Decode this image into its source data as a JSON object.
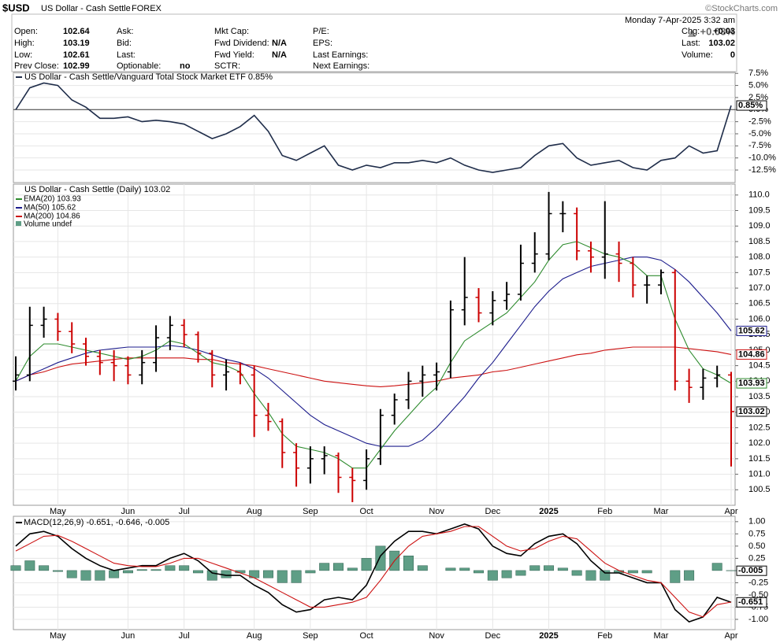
{
  "header": {
    "symbol": "$USD",
    "name": "US Dollar - Cash Settle",
    "exchange": "FOREX",
    "copyright": "©StockCharts.com",
    "date": "Monday  7-Apr-2025  3:32 am",
    "change_pct": "+0.03%",
    "fields": [
      [
        [
          "Open:",
          "102.64"
        ],
        [
          "Ask:",
          ""
        ],
        [
          "Mkt Cap:",
          ""
        ],
        [
          "P/E:",
          ""
        ],
        [
          "Chg:",
          "+0.03"
        ]
      ],
      [
        [
          "High:",
          "103.19"
        ],
        [
          "Bid:",
          ""
        ],
        [
          "Fwd Dividend:",
          "N/A"
        ],
        [
          "EPS:",
          ""
        ],
        [
          "Last:",
          "103.02"
        ]
      ],
      [
        [
          "Low:",
          "102.61"
        ],
        [
          "Last:",
          ""
        ],
        [
          "Fwd Yield:",
          "N/A"
        ],
        [
          "Last Earnings:",
          ""
        ],
        [
          "Volume:",
          "0"
        ]
      ],
      [
        [
          "Prev Close:",
          "102.99"
        ],
        [
          "Optionable:",
          "no"
        ],
        [
          "SCTR:",
          ""
        ],
        [
          "Next Earnings:",
          ""
        ],
        null
      ]
    ]
  },
  "chart_data": [
    {
      "type": "line",
      "title": "US Dollar - Cash Settle/Vanguard Total Stock Market ETF 0.85%",
      "color": "#1f2d4a",
      "values": [
        0.0,
        4.5,
        5.5,
        5.0,
        2.0,
        0.5,
        -1.8,
        -1.8,
        -1.5,
        -2.5,
        -2.2,
        -2.5,
        -3.0,
        -4.5,
        -6.0,
        -5.0,
        -3.5,
        -1.2,
        -4.5,
        -9.5,
        -10.5,
        -9.0,
        -7.5,
        -11.5,
        -12.5,
        -11.5,
        -12.0,
        -11.0,
        -11.0,
        -10.5,
        -11.0,
        -10.0,
        -11.5,
        -12.5,
        -13.0,
        -12.5,
        -12.0,
        -9.5,
        -7.5,
        -7.0,
        -10.0,
        -11.5,
        -11.0,
        -10.5,
        -12.0,
        -12.5,
        -10.5,
        -10.0,
        -7.5,
        -9.0,
        -8.5,
        0.85
      ],
      "value_labels": [
        null,
        null,
        null,
        null,
        null,
        null,
        null,
        null,
        null,
        null,
        null,
        null,
        null,
        null,
        null,
        null,
        null,
        null,
        null,
        null,
        null,
        null,
        null,
        null,
        null,
        null,
        null,
        null,
        null,
        null,
        null,
        null,
        null,
        null,
        null,
        null,
        null,
        null,
        null,
        null,
        null,
        null,
        null,
        null,
        null,
        null,
        null,
        null,
        null,
        null,
        null,
        "0.85%"
      ],
      "ylim": [
        -15.1,
        7.7
      ],
      "yticks": [
        {
          "value": 7.5,
          "label": "7.5%"
        },
        {
          "value": 5,
          "label": "5.0%"
        },
        {
          "value": 2.5,
          "label": "2.5%"
        },
        {
          "value": 0,
          "label": "0.0%"
        },
        {
          "value": -2.5,
          "label": "-2.5%"
        },
        {
          "value": -5,
          "label": "-5.0%"
        },
        {
          "value": -7.5,
          "label": "-7.5%"
        },
        {
          "value": -10,
          "label": "-10.0%"
        },
        {
          "value": -12.5,
          "label": "-12.5%"
        }
      ],
      "grid": true
    },
    {
      "type": "ohlc",
      "title": "US Dollar - Cash Settle (Daily) 103.02",
      "up_color": "#000000",
      "down_color": "#cc0000",
      "volume_label": "Volume undef",
      "categories": [
        null,
        null,
        null,
        "May",
        null,
        null,
        null,
        null,
        "Jun",
        null,
        null,
        null,
        "Jul",
        null,
        null,
        null,
        null,
        "Aug",
        null,
        null,
        null,
        "Sep",
        null,
        null,
        null,
        "Oct",
        null,
        null,
        null,
        null,
        "Nov",
        null,
        null,
        null,
        "Dec",
        null,
        null,
        null,
        "2025",
        null,
        null,
        null,
        "Feb",
        null,
        null,
        null,
        "Mar",
        null,
        null,
        null,
        null,
        "Apr"
      ],
      "open": [
        104.0,
        104.2,
        105.8,
        106.0,
        105.6,
        105.2,
        104.8,
        104.6,
        104.5,
        104.2,
        104.6,
        105.4,
        105.8,
        105.5,
        104.9,
        104.2,
        104.3,
        104.2,
        102.9,
        102.7,
        101.7,
        101.2,
        101.5,
        101.6,
        100.9,
        100.8,
        101.5,
        102.9,
        103.4,
        104.0,
        104.2,
        104.3,
        106.3,
        106.7,
        106.2,
        106.6,
        106.8,
        107.8,
        108.1,
        109.4,
        109.4,
        108.2,
        108.0,
        108.1,
        107.8,
        107.1,
        107.1,
        107.5,
        104.0,
        103.8,
        104.1,
        104.2
      ],
      "high": [
        104.8,
        106.4,
        106.4,
        106.2,
        105.9,
        105.4,
        105.0,
        105.0,
        104.8,
        105.0,
        105.8,
        106.1,
        106.0,
        105.6,
        105.0,
        104.7,
        104.6,
        104.5,
        103.3,
        102.8,
        102.0,
        101.9,
        101.9,
        101.7,
        101.2,
        101.8,
        103.1,
        103.6,
        104.3,
        104.5,
        104.6,
        106.6,
        108.0,
        107.0,
        106.9,
        107.2,
        108.4,
        108.8,
        110.1,
        109.8,
        109.6,
        108.5,
        109.8,
        108.5,
        108.0,
        107.4,
        107.6,
        107.6,
        104.4,
        104.4,
        104.5,
        104.3
      ],
      "low": [
        103.7,
        104.0,
        105.4,
        105.3,
        104.9,
        104.5,
        104.2,
        104.0,
        103.9,
        103.9,
        104.3,
        105.0,
        105.1,
        104.6,
        103.8,
        103.7,
        103.9,
        102.2,
        102.4,
        101.2,
        100.6,
        100.7,
        101.0,
        100.4,
        100.1,
        100.5,
        101.3,
        102.6,
        103.1,
        103.5,
        103.7,
        104.1,
        105.8,
        105.9,
        105.8,
        106.3,
        106.6,
        107.5,
        107.9,
        108.8,
        107.9,
        107.5,
        107.3,
        107.2,
        106.7,
        106.5,
        106.8,
        103.7,
        103.3,
        103.4,
        103.8,
        101.25
      ],
      "close": [
        104.2,
        105.8,
        106.0,
        105.6,
        105.2,
        104.8,
        104.6,
        104.5,
        104.2,
        104.6,
        105.4,
        105.8,
        105.5,
        104.9,
        104.2,
        104.3,
        104.2,
        102.9,
        102.7,
        101.7,
        101.2,
        101.5,
        101.6,
        100.9,
        100.8,
        101.5,
        102.9,
        103.4,
        104.0,
        104.2,
        104.3,
        106.3,
        106.7,
        106.2,
        106.6,
        106.8,
        107.8,
        108.1,
        109.4,
        109.4,
        108.2,
        108.0,
        108.1,
        107.8,
        107.1,
        107.1,
        107.5,
        104.0,
        103.8,
        104.1,
        104.2,
        103.02
      ],
      "series": [
        {
          "name": "EMA(20) 103.93",
          "color": "#2e8b2e",
          "values": [
            104.0,
            104.8,
            105.2,
            105.2,
            105.1,
            105.0,
            104.9,
            104.8,
            104.7,
            104.8,
            105.0,
            105.3,
            105.2,
            104.9,
            104.6,
            104.5,
            104.3,
            103.6,
            103.0,
            102.3,
            101.9,
            101.8,
            101.7,
            101.5,
            101.2,
            101.2,
            101.8,
            102.4,
            102.9,
            103.4,
            103.8,
            104.6,
            105.3,
            105.6,
            105.9,
            106.2,
            106.7,
            107.2,
            107.9,
            108.4,
            108.5,
            108.3,
            108.1,
            108.0,
            107.8,
            107.4,
            107.4,
            106.0,
            105.0,
            104.4,
            104.2,
            103.93
          ]
        },
        {
          "name": "MA(50) 105.62",
          "color": "#1c1c8c",
          "values": [
            104.0,
            104.2,
            104.4,
            104.6,
            104.75,
            104.9,
            105.0,
            105.05,
            105.1,
            105.1,
            105.1,
            105.15,
            105.1,
            105.0,
            104.85,
            104.7,
            104.6,
            104.4,
            104.1,
            103.7,
            103.3,
            102.9,
            102.6,
            102.4,
            102.2,
            102.0,
            101.9,
            101.9,
            101.9,
            102.1,
            102.5,
            103.0,
            103.5,
            104.1,
            104.6,
            105.2,
            105.8,
            106.4,
            106.9,
            107.3,
            107.5,
            107.7,
            107.8,
            107.9,
            108.0,
            108.0,
            107.9,
            107.6,
            107.2,
            106.7,
            106.2,
            105.62
          ]
        },
        {
          "name": "MA(200) 104.86",
          "color": "#cc1111",
          "values": [
            104.0,
            104.2,
            104.3,
            104.45,
            104.55,
            104.6,
            104.65,
            104.7,
            104.75,
            104.75,
            104.75,
            104.75,
            104.75,
            104.7,
            104.7,
            104.6,
            104.55,
            104.5,
            104.4,
            104.3,
            104.2,
            104.1,
            104.0,
            103.95,
            103.9,
            103.85,
            103.82,
            103.85,
            103.9,
            103.95,
            104.0,
            104.1,
            104.15,
            104.2,
            104.3,
            104.35,
            104.45,
            104.55,
            104.65,
            104.75,
            104.85,
            104.9,
            105.0,
            105.05,
            105.1,
            105.1,
            105.1,
            105.1,
            105.05,
            105.0,
            104.95,
            104.86
          ]
        }
      ],
      "ylim": [
        100.0,
        110.35
      ],
      "yticks": [
        100.5,
        {
          "value": 101,
          "label": "101.0"
        },
        101.5,
        {
          "value": 102,
          "label": "102.0"
        },
        102.5,
        {
          "value": 103,
          "label": "103.0"
        },
        103.5,
        {
          "value": 104,
          "label": "104.0"
        },
        104.5,
        {
          "value": 105,
          "label": "105.0"
        },
        105.5,
        {
          "value": 106,
          "label": "106.0"
        },
        106.5,
        {
          "value": 107,
          "label": "107.0"
        },
        107.5,
        {
          "value": 108,
          "label": "108.0"
        },
        108.5,
        {
          "value": 109,
          "label": "109.0"
        },
        109.5,
        {
          "value": 110,
          "label": "110.0"
        }
      ],
      "grid": true
    },
    {
      "type": "macd",
      "title": "MACD(12,26,9) -0.651, -0.646, -0.005",
      "categories": [
        null,
        null,
        null,
        "May",
        null,
        null,
        null,
        null,
        "Jun",
        null,
        null,
        null,
        "Jul",
        null,
        null,
        null,
        null,
        "Aug",
        null,
        null,
        null,
        "Sep",
        null,
        null,
        null,
        "Oct",
        null,
        null,
        null,
        null,
        "Nov",
        null,
        null,
        null,
        "Dec",
        null,
        null,
        null,
        "2025",
        null,
        null,
        null,
        "Feb",
        null,
        null,
        null,
        "Mar",
        null,
        null,
        null,
        null,
        "Apr"
      ],
      "series": [
        {
          "color": "#000000",
          "values": [
            0.5,
            0.75,
            0.8,
            0.7,
            0.45,
            0.25,
            0.1,
            0.0,
            0.05,
            0.1,
            0.1,
            0.25,
            0.35,
            0.2,
            -0.05,
            -0.1,
            -0.1,
            -0.3,
            -0.45,
            -0.7,
            -0.85,
            -0.8,
            -0.6,
            -0.55,
            -0.6,
            -0.3,
            0.3,
            0.6,
            0.8,
            0.8,
            0.75,
            0.85,
            0.95,
            0.85,
            0.5,
            0.35,
            0.3,
            0.55,
            0.7,
            0.75,
            0.55,
            0.2,
            -0.05,
            -0.05,
            -0.15,
            -0.25,
            -0.25,
            -0.8,
            -1.05,
            -0.95,
            -0.55,
            -0.651
          ]
        },
        {
          "color": "#cc1111",
          "values": [
            0.4,
            0.55,
            0.7,
            0.72,
            0.6,
            0.45,
            0.3,
            0.15,
            0.1,
            0.08,
            0.08,
            0.15,
            0.25,
            0.25,
            0.15,
            0.05,
            -0.05,
            -0.15,
            -0.3,
            -0.45,
            -0.6,
            -0.75,
            -0.75,
            -0.7,
            -0.65,
            -0.55,
            -0.2,
            0.2,
            0.5,
            0.7,
            0.75,
            0.8,
            0.9,
            0.9,
            0.7,
            0.5,
            0.4,
            0.45,
            0.6,
            0.7,
            0.65,
            0.4,
            0.15,
            0.0,
            -0.1,
            -0.2,
            -0.25,
            -0.55,
            -0.85,
            -0.95,
            -0.7,
            -0.646
          ]
        }
      ],
      "histogram": {
        "color": "#5f9e86",
        "values": [
          0.1,
          0.2,
          0.1,
          -0.02,
          -0.15,
          -0.2,
          -0.2,
          -0.15,
          -0.05,
          0.02,
          0.02,
          0.1,
          0.1,
          -0.05,
          -0.2,
          -0.15,
          -0.05,
          -0.15,
          -0.15,
          -0.25,
          -0.25,
          -0.05,
          0.15,
          0.15,
          0.05,
          0.25,
          0.5,
          0.4,
          0.3,
          0.1,
          0.0,
          0.05,
          0.05,
          -0.05,
          -0.2,
          -0.15,
          -0.1,
          0.1,
          0.1,
          0.05,
          -0.1,
          -0.2,
          -0.2,
          -0.05,
          -0.05,
          -0.05,
          0.0,
          -0.25,
          -0.2,
          0.0,
          0.15,
          -0.005
        ]
      },
      "ylim": [
        -1.21,
        1.11
      ],
      "yticks": [
        {
          "value": 1,
          "label": "1.00"
        },
        0.75,
        {
          "value": 0.5,
          "label": "0.50"
        },
        0.25,
        -0.25,
        {
          "value": -0.5,
          "label": "-0.50"
        },
        -0.75,
        {
          "value": -1,
          "label": "-1.00"
        }
      ],
      "grid": true
    }
  ]
}
